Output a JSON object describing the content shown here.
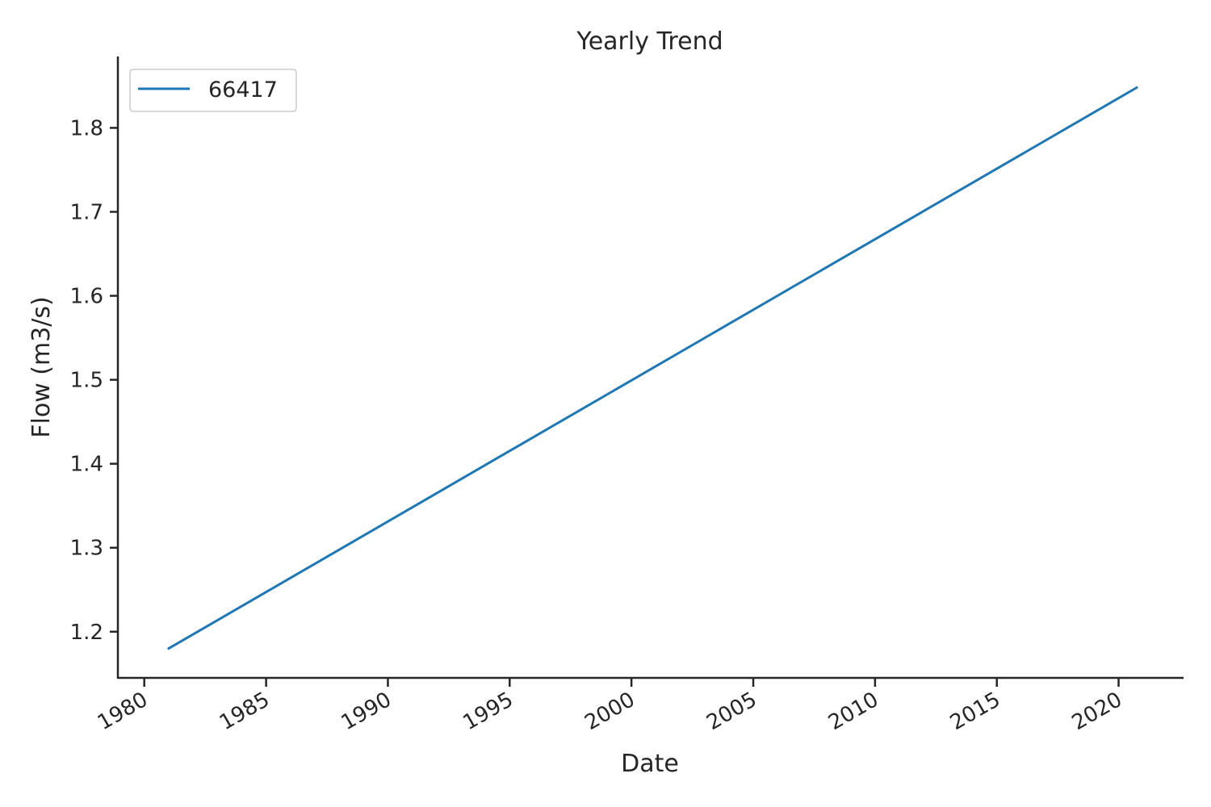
{
  "chart_data": {
    "type": "line",
    "title": "Yearly Trend",
    "xlabel": "Date",
    "ylabel": "Flow (m3/s)",
    "x_scale": "date",
    "xlim": [
      "1978-12-01",
      "2022-09-01"
    ],
    "ylim": [
      1.145,
      1.885
    ],
    "x_ticks": [
      {
        "value": "1980-01-01",
        "label": "1980"
      },
      {
        "value": "1985-01-01",
        "label": "1985"
      },
      {
        "value": "1990-01-01",
        "label": "1990"
      },
      {
        "value": "1995-01-01",
        "label": "1995"
      },
      {
        "value": "2000-01-01",
        "label": "2000"
      },
      {
        "value": "2005-01-01",
        "label": "2005"
      },
      {
        "value": "2010-01-01",
        "label": "2010"
      },
      {
        "value": "2015-01-01",
        "label": "2015"
      },
      {
        "value": "2020-01-01",
        "label": "2020"
      }
    ],
    "y_ticks": [
      {
        "value": 1.2,
        "label": "1.2"
      },
      {
        "value": 1.3,
        "label": "1.3"
      },
      {
        "value": 1.4,
        "label": "1.4"
      },
      {
        "value": 1.5,
        "label": "1.5"
      },
      {
        "value": 1.6,
        "label": "1.6"
      },
      {
        "value": 1.7,
        "label": "1.7"
      },
      {
        "value": 1.8,
        "label": "1.8"
      }
    ],
    "grid": false,
    "legend": {
      "position": "top-left",
      "entries": [
        "66417"
      ]
    },
    "series": [
      {
        "name": "66417",
        "color": "#1f77b4",
        "points": [
          {
            "x": "1980-12-31",
            "y": 1.18
          },
          {
            "x": "2020-09-30",
            "y": 1.848
          }
        ]
      }
    ]
  }
}
